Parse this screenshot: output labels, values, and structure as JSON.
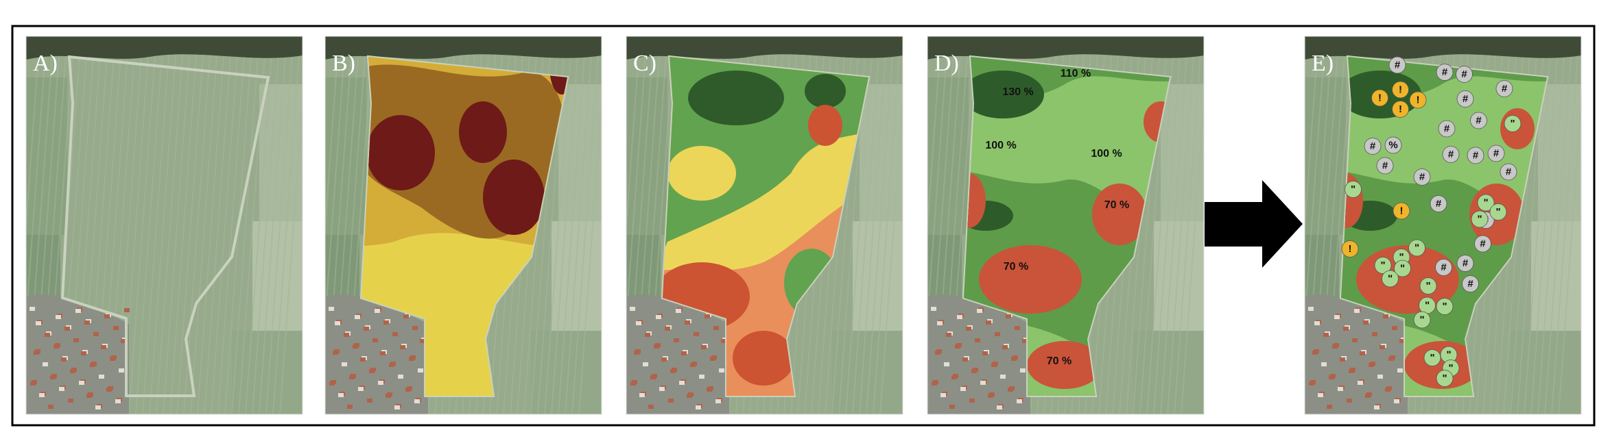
{
  "panels": [
    {
      "label": "A)"
    },
    {
      "label": "B)"
    },
    {
      "label": "C)"
    },
    {
      "label": "D)",
      "annotations": [
        "110 %",
        "130 %",
        "100 %",
        "100 %",
        "70 %",
        "70 %",
        "70 %"
      ]
    },
    {
      "label": "E)",
      "markers": [
        "!",
        "!",
        "!",
        "!",
        "!",
        "!",
        "#",
        "#",
        "#",
        "#",
        "#",
        "#",
        "#",
        "#",
        "#",
        "#",
        "#",
        "#",
        "#",
        "#",
        "#",
        "#",
        "#",
        "#",
        "#",
        "#",
        "%",
        "\"",
        "\"",
        "\"",
        "\"",
        "\"",
        "\"",
        "\"",
        "\"",
        "\"",
        "\"",
        "\"",
        "\"",
        "\"",
        "\"",
        "\"",
        "\"",
        "\"",
        "\""
      ]
    }
  ]
}
